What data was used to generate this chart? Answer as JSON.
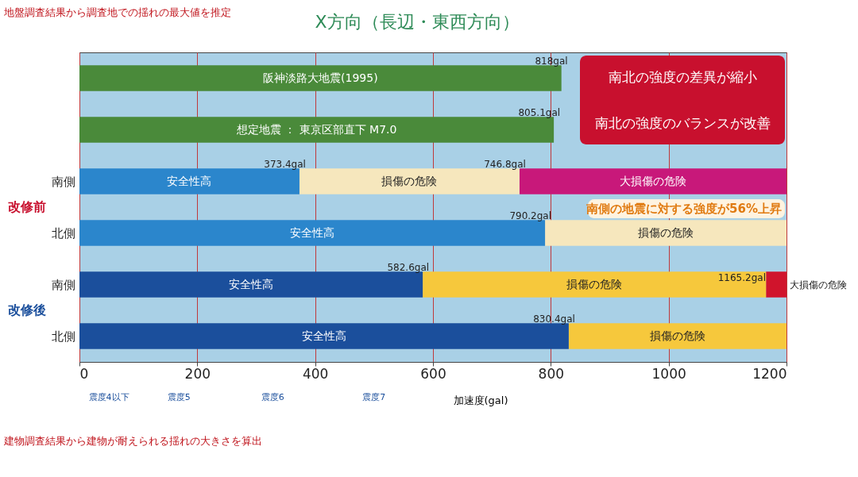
{
  "chart_data": {
    "type": "bar",
    "orientation": "horizontal",
    "stacked": true,
    "title": "X方向（長辺・東西方向）",
    "xlabel": "加速度(gal)",
    "categories": [
      "阪神淡路大地震(1995)",
      "想定地震 ： 東京区部直下 M7.0",
      "南側",
      "北側",
      "南側",
      "北側"
    ],
    "series": [
      {
        "colors": [
          "#4a8a3a",
          "#4a8a3a",
          null,
          null,
          null,
          null
        ],
        "values": [
          818,
          805.1,
          null,
          null,
          null,
          null
        ],
        "value_labels": [
          "818gal",
          "805.1gal",
          null,
          null,
          null,
          null
        ]
      },
      {
        "name": "安全性高",
        "colors": [
          null,
          null,
          "#2b86cc",
          "#2b86cc",
          "#1b4f9c",
          "#1b4f9c"
        ],
        "values": [
          null,
          null,
          373.4,
          790.2,
          582.6,
          830.4
        ],
        "value_labels": [
          null,
          null,
          "373.4gal",
          "790.2gal",
          "582.6gal",
          "830.4gal"
        ]
      },
      {
        "name": "損傷の危険",
        "colors": [
          null,
          null,
          "#f6e7bd",
          "#f6e7bd",
          "#f6c83c",
          "#f6c83c"
        ],
        "values": [
          null,
          null,
          373.4,
          409.8,
          582.6,
          369.6
        ]
      },
      {
        "name": "大損傷の危険",
        "colors": [
          null,
          null,
          "#c8187a",
          null,
          "#d0142c",
          null
        ],
        "values": [
          null,
          null,
          453.2,
          null,
          34.8,
          null
        ]
      }
    ],
    "xlim": [
      0,
      1200
    ],
    "xticks": [
      0,
      200,
      400,
      600,
      800,
      {
        "value": 1000,
        "label": "1000"
      },
      {
        "value": 1200,
        "label": "1200"
      }
    ],
    "grid": "x",
    "annotations": [
      "地盤調査結果から調査地での揺れの最大値を推定",
      "建物調査結果から建物が耐えられる揺れの大きさを算出",
      "南北の強度の差異が縮小",
      "南北の強度のバランスが改善",
      "南側の地震に対する強度が56%上昇",
      "改修前",
      "改修後",
      "震度4以下",
      "震度5",
      "震度6",
      "震度7",
      {
        "text": "746.8gal",
        "x": 746.8,
        "y": "南側"
      },
      "1165.2gal"
    ]
  }
}
